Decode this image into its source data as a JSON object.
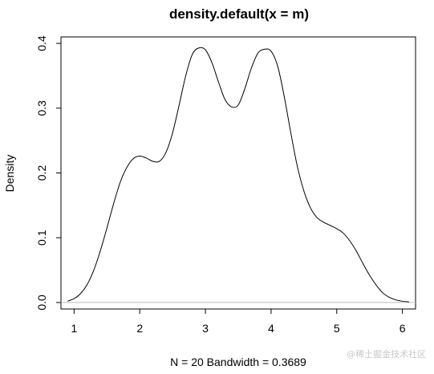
{
  "chart_data": {
    "type": "line",
    "title": "density.default(x = m)",
    "xlabel": "N = 20   Bandwidth = 0.3689",
    "ylabel": "Density",
    "xlim": [
      0.8,
      6.2
    ],
    "ylim": [
      -0.01,
      0.41
    ],
    "x_ticks": [
      1,
      2,
      3,
      4,
      5,
      6
    ],
    "y_ticks": [
      0.0,
      0.1,
      0.2,
      0.3,
      0.4
    ],
    "x_tick_labels": [
      "1",
      "2",
      "3",
      "4",
      "5",
      "6"
    ],
    "y_tick_labels": [
      "0.0",
      "0.1",
      "0.2",
      "0.3",
      "0.4"
    ],
    "grid": false,
    "baseline": 0,
    "colors": {
      "line": "#000000",
      "baseline": "#bebebe",
      "frame": "#000000"
    },
    "series": [
      {
        "x": [
          0.9,
          1.0,
          1.1,
          1.2,
          1.3,
          1.4,
          1.5,
          1.6,
          1.7,
          1.8,
          1.9,
          2.0,
          2.1,
          2.2,
          2.3,
          2.4,
          2.5,
          2.6,
          2.7,
          2.8,
          2.9,
          3.0,
          3.1,
          3.2,
          3.3,
          3.4,
          3.5,
          3.6,
          3.7,
          3.8,
          3.9,
          4.0,
          4.1,
          4.2,
          4.3,
          4.4,
          4.5,
          4.6,
          4.7,
          4.8,
          4.9,
          5.0,
          5.1,
          5.2,
          5.3,
          5.4,
          5.5,
          5.6,
          5.7,
          5.8,
          5.9,
          6.0,
          6.1
        ],
        "y": [
          0.002,
          0.006,
          0.014,
          0.028,
          0.05,
          0.08,
          0.115,
          0.152,
          0.185,
          0.208,
          0.222,
          0.226,
          0.223,
          0.218,
          0.218,
          0.232,
          0.262,
          0.305,
          0.35,
          0.383,
          0.393,
          0.39,
          0.37,
          0.34,
          0.313,
          0.302,
          0.305,
          0.33,
          0.362,
          0.385,
          0.391,
          0.388,
          0.365,
          0.318,
          0.262,
          0.21,
          0.172,
          0.146,
          0.131,
          0.124,
          0.119,
          0.114,
          0.107,
          0.095,
          0.079,
          0.06,
          0.042,
          0.027,
          0.015,
          0.008,
          0.004,
          0.002,
          0.001
        ]
      }
    ]
  },
  "watermark": "@稀土掘金技术社区"
}
